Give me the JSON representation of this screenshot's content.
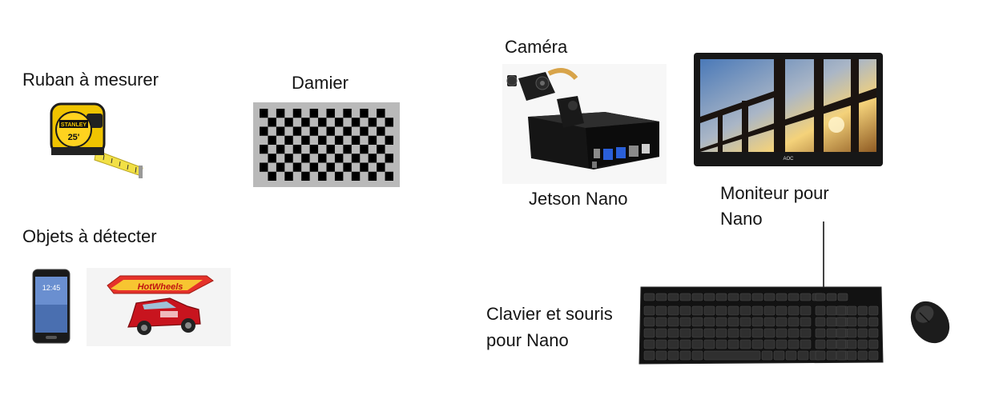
{
  "labels": {
    "tape_measure": "Ruban à mesurer",
    "checkerboard": "Damier",
    "objects": "Objets à détecter",
    "camera": "Caméra",
    "jetson": "Jetson Nano",
    "monitor_line1": "Moniteur pour",
    "monitor_line2": "Nano",
    "keyboard_line1": "Clavier et souris",
    "keyboard_line2": "pour Nano"
  },
  "logos": {
    "tape_brand": "STANLEY",
    "tape_number": "25'",
    "car_brand": "HotWheels",
    "monitor_brand": "AOC",
    "phone_time": "12:45"
  },
  "icons": [
    "tape-measure-icon",
    "checkerboard-icon",
    "smartphone-icon",
    "toy-car-icon",
    "camera-jetson-icon",
    "monitor-icon",
    "keyboard-icon",
    "mouse-icon"
  ],
  "checkerboard": {
    "rows": 8,
    "cols": 16
  }
}
